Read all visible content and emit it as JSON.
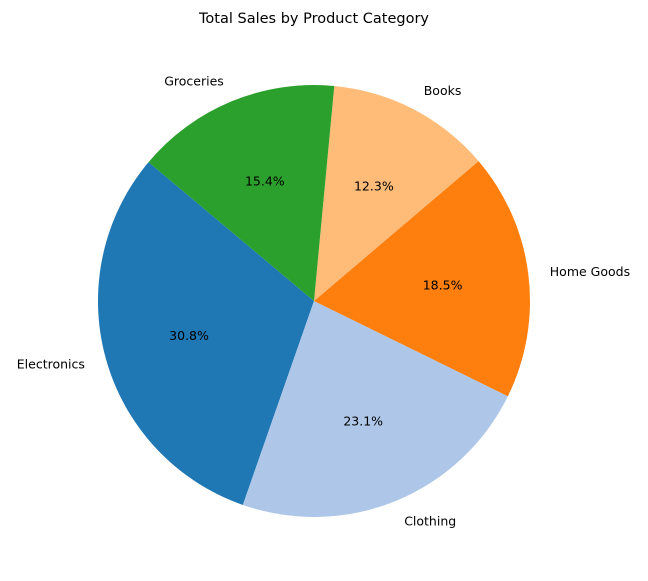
{
  "chart_data": {
    "type": "pie",
    "title": "Total Sales by Product Category",
    "start_angle_deg": 140,
    "direction": "counterclockwise",
    "slices": [
      {
        "label": "Electronics",
        "value": 30.8,
        "pct_text": "30.8%",
        "color": "#1f77b4"
      },
      {
        "label": "Clothing",
        "value": 23.1,
        "pct_text": "23.1%",
        "color": "#aec7e8"
      },
      {
        "label": "Home Goods",
        "value": 18.5,
        "pct_text": "18.5%",
        "color": "#ff7f0e"
      },
      {
        "label": "Books",
        "value": 12.3,
        "pct_text": "12.3%",
        "color": "#ffbb78"
      },
      {
        "label": "Groceries",
        "value": 15.4,
        "pct_text": "15.4%",
        "color": "#2ca02c"
      }
    ]
  }
}
